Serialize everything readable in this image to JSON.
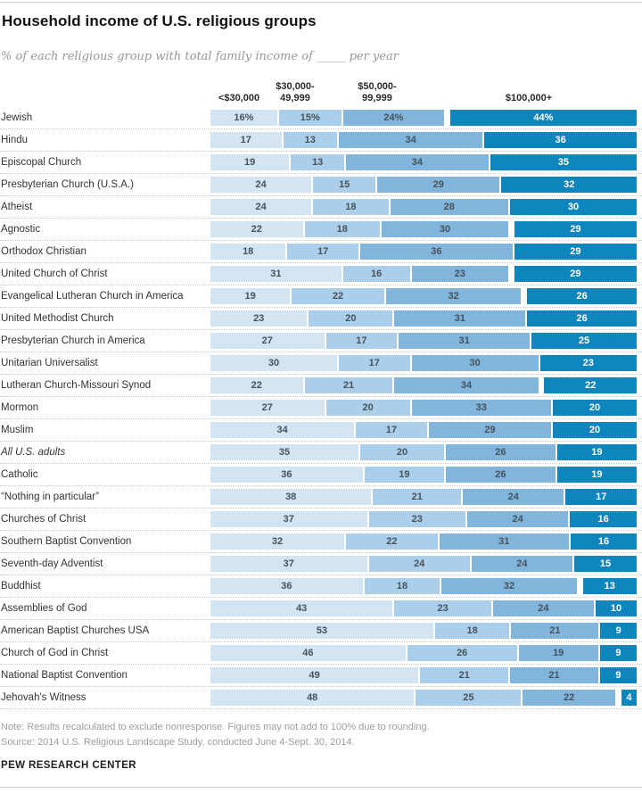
{
  "page": {
    "title": "Household income of U.S. religious groups",
    "subtitle": "% of each religious group with total family income of _____ per year",
    "note_line": "Note: Results recalculated to exclude nonresponse. Figures may not add to 100% due to rounding.",
    "source_line": "Source: 2014 U.S. Religious Landscape Study, conducted June 4-Sept. 30, 2014.",
    "brand": "PEW RESEARCH CENTER"
  },
  "chart_data": {
    "type": "bar",
    "stacked": true,
    "orientation": "horizontal",
    "unit": "percent",
    "legend_position": "top-column-headers",
    "grid": "dotted-row-separators",
    "columns": [
      "<$30,000",
      "$30,000-\n49,999",
      "$50,000-\n99,999",
      "$100,000+"
    ],
    "segment_keys": [
      "under-30k",
      "30k-49999",
      "50k-99999",
      "100k-plus"
    ],
    "colors": {
      "segments": [
        "#d3e5f3",
        "#abcfea",
        "#81b5dc",
        "#0e86bd"
      ],
      "segment_text": "#45525b",
      "segment_text_last": "#ffffff"
    },
    "rows": [
      {
        "label": "Jewish",
        "values": [
          16,
          15,
          24,
          44
        ],
        "display": [
          "16%",
          "15%",
          "24%",
          "44%"
        ],
        "italic": false
      },
      {
        "label": "Hindu",
        "values": [
          17,
          13,
          34,
          36
        ],
        "display": [
          "17",
          "13",
          "34",
          "36"
        ],
        "italic": false
      },
      {
        "label": "Episcopal Church",
        "values": [
          19,
          13,
          34,
          35
        ],
        "display": [
          "19",
          "13",
          "34",
          "35"
        ],
        "italic": false
      },
      {
        "label": "Presbyterian Church (U.S.A.)",
        "values": [
          24,
          15,
          29,
          32
        ],
        "display": [
          "24",
          "15",
          "29",
          "32"
        ],
        "italic": false
      },
      {
        "label": "Atheist",
        "values": [
          24,
          18,
          28,
          30
        ],
        "display": [
          "24",
          "18",
          "28",
          "30"
        ],
        "italic": false
      },
      {
        "label": "Agnostic",
        "values": [
          22,
          18,
          30,
          29
        ],
        "display": [
          "22",
          "18",
          "30",
          "29"
        ],
        "italic": false
      },
      {
        "label": "Orthodox Christian",
        "values": [
          18,
          17,
          36,
          29
        ],
        "display": [
          "18",
          "17",
          "36",
          "29"
        ],
        "italic": false
      },
      {
        "label": "United Church of Christ",
        "values": [
          31,
          16,
          23,
          29
        ],
        "display": [
          "31",
          "16",
          "23",
          "29"
        ],
        "italic": false
      },
      {
        "label": "Evangelical Lutheran Church in America",
        "values": [
          19,
          22,
          32,
          26
        ],
        "display": [
          "19",
          "22",
          "32",
          "26"
        ],
        "italic": false
      },
      {
        "label": "United Methodist Church",
        "values": [
          23,
          20,
          31,
          26
        ],
        "display": [
          "23",
          "20",
          "31",
          "26"
        ],
        "italic": false
      },
      {
        "label": "Presbyterian Church in America",
        "values": [
          27,
          17,
          31,
          25
        ],
        "display": [
          "27",
          "17",
          "31",
          "25"
        ],
        "italic": false
      },
      {
        "label": "Unitarian Universalist",
        "values": [
          30,
          17,
          30,
          23
        ],
        "display": [
          "30",
          "17",
          "30",
          "23"
        ],
        "italic": false
      },
      {
        "label": "Lutheran Church-Missouri Synod",
        "values": [
          22,
          21,
          34,
          22
        ],
        "display": [
          "22",
          "21",
          "34",
          "22"
        ],
        "italic": false
      },
      {
        "label": "Mormon",
        "values": [
          27,
          20,
          33,
          20
        ],
        "display": [
          "27",
          "20",
          "33",
          "20"
        ],
        "italic": false
      },
      {
        "label": "Muslim",
        "values": [
          34,
          17,
          29,
          20
        ],
        "display": [
          "34",
          "17",
          "29",
          "20"
        ],
        "italic": false
      },
      {
        "label": "All U.S. adults",
        "values": [
          35,
          20,
          26,
          19
        ],
        "display": [
          "35",
          "20",
          "26",
          "19"
        ],
        "italic": true
      },
      {
        "label": "Catholic",
        "values": [
          36,
          19,
          26,
          19
        ],
        "display": [
          "36",
          "19",
          "26",
          "19"
        ],
        "italic": false
      },
      {
        "label": "“Nothing in particular”",
        "values": [
          38,
          21,
          24,
          17
        ],
        "display": [
          "38",
          "21",
          "24",
          "17"
        ],
        "italic": false
      },
      {
        "label": "Churches of Christ",
        "values": [
          37,
          23,
          24,
          16
        ],
        "display": [
          "37",
          "23",
          "24",
          "16"
        ],
        "italic": false
      },
      {
        "label": "Southern Baptist Convention",
        "values": [
          32,
          22,
          31,
          16
        ],
        "display": [
          "32",
          "22",
          "31",
          "16"
        ],
        "italic": false
      },
      {
        "label": "Seventh-day Adventist",
        "values": [
          37,
          24,
          24,
          15
        ],
        "display": [
          "37",
          "24",
          "24",
          "15"
        ],
        "italic": false
      },
      {
        "label": "Buddhist",
        "values": [
          36,
          18,
          32,
          13
        ],
        "display": [
          "36",
          "18",
          "32",
          "13"
        ],
        "italic": false
      },
      {
        "label": "Assemblies of God",
        "values": [
          43,
          23,
          24,
          10
        ],
        "display": [
          "43",
          "23",
          "24",
          "10"
        ],
        "italic": false
      },
      {
        "label": "American Baptist Churches USA",
        "values": [
          53,
          18,
          21,
          9
        ],
        "display": [
          "53",
          "18",
          "21",
          "9"
        ],
        "italic": false
      },
      {
        "label": "Church of God in Christ",
        "values": [
          46,
          26,
          19,
          9
        ],
        "display": [
          "46",
          "26",
          "19",
          "9"
        ],
        "italic": false
      },
      {
        "label": "National Baptist Convention",
        "values": [
          49,
          21,
          21,
          9
        ],
        "display": [
          "49",
          "21",
          "21",
          "9"
        ],
        "italic": false
      },
      {
        "label": "Jehovah's Witness",
        "values": [
          48,
          25,
          22,
          4
        ],
        "display": [
          "48",
          "25",
          "22",
          "4"
        ],
        "italic": false
      }
    ]
  }
}
